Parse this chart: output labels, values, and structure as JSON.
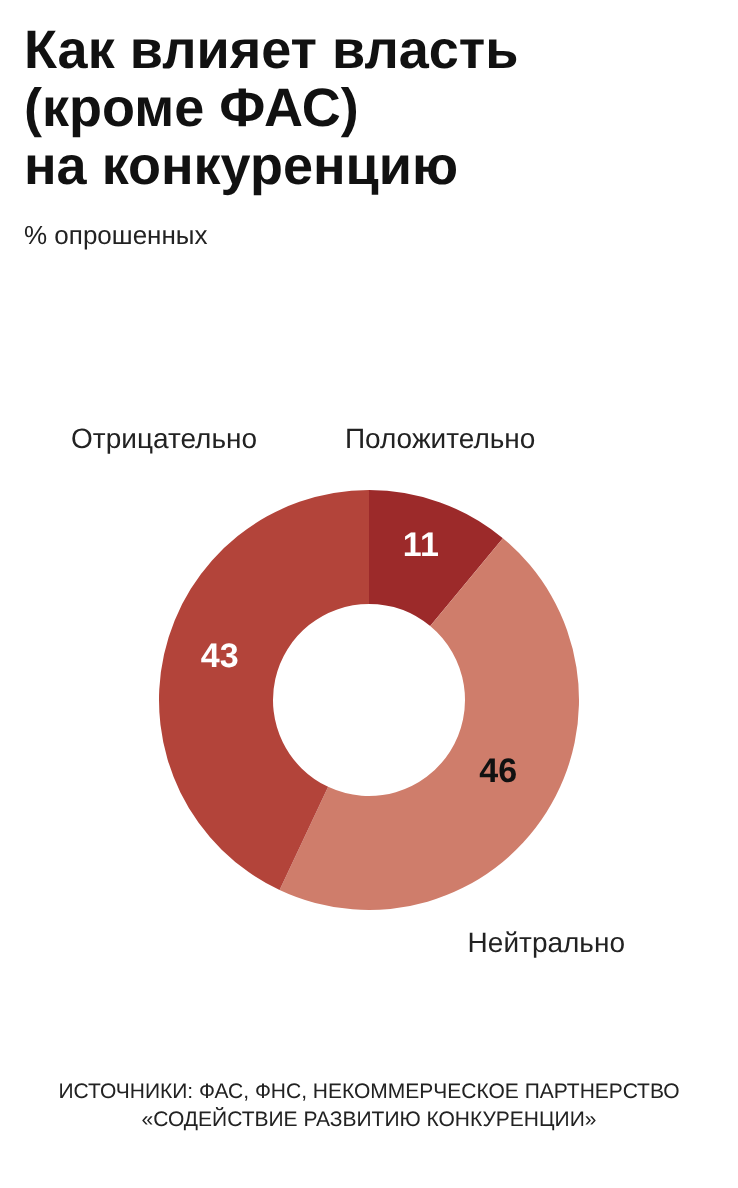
{
  "chart_data": {
    "type": "donut",
    "title": [
      "Как влияет власть",
      "(кроме ФАС)",
      "на конкуренцию"
    ],
    "subtitle": "% опрошенных",
    "categories": [
      "Положительно",
      "Нейтрально",
      "Отрицательно"
    ],
    "values": [
      11,
      46,
      43
    ],
    "colors": [
      "#9c2a2a",
      "#cf7d6b",
      "#b3443a"
    ],
    "data_labels": true,
    "legend": false,
    "annotations": [
      "ИСТОЧНИКИ: ФАС, ФНС, НЕКОММЕРЧЕСКОЕ ПАРТНЕРСТВО",
      "«СОДЕЙСТВИЕ РАЗВИТИЮ КОНКУРЕНЦИИ»"
    ]
  }
}
